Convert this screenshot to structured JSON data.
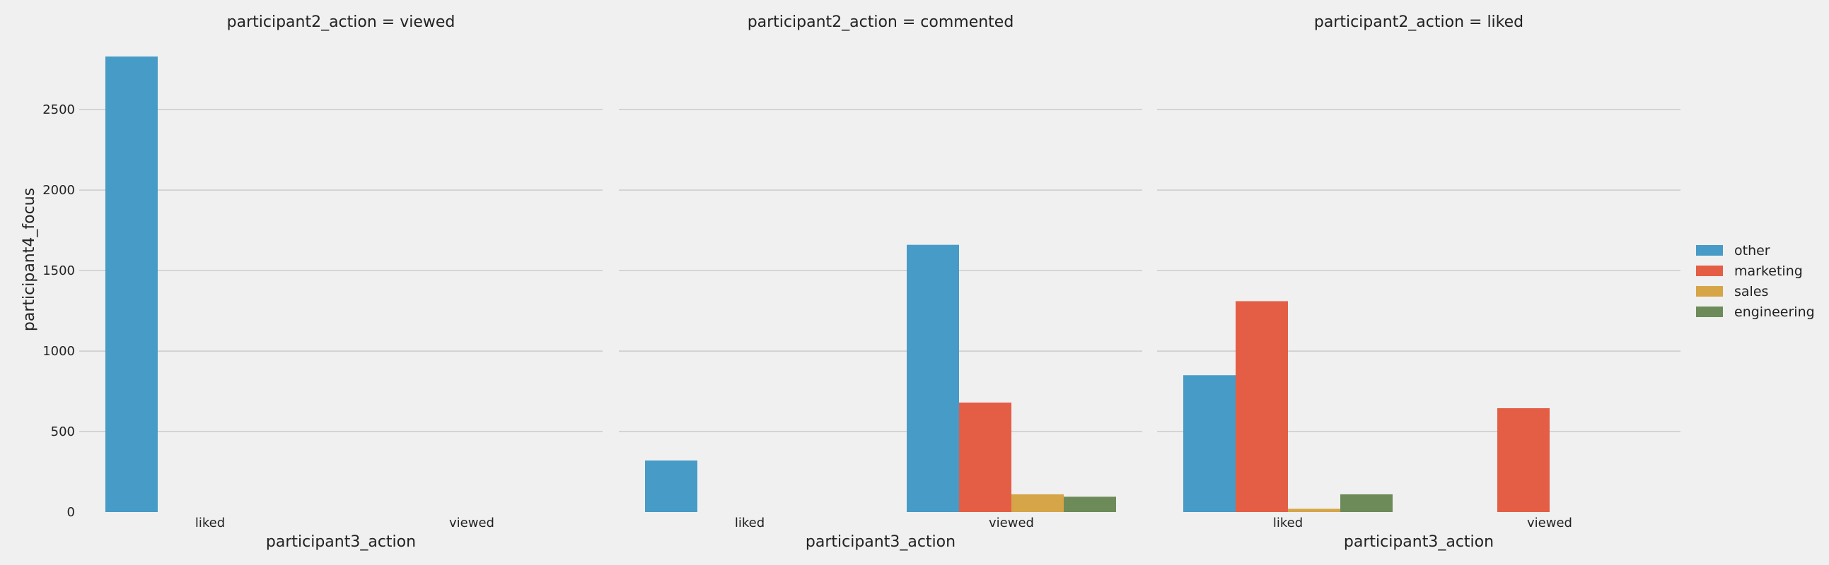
{
  "chart_data": {
    "type": "bar",
    "ylabel": "participant4_focus",
    "ylim": [
      0,
      2900
    ],
    "yticks": [
      0,
      500,
      1000,
      1500,
      2000,
      2500
    ],
    "grid": "y-only",
    "legend_position": "right",
    "colors": {
      "other": "#479bc7",
      "marketing": "#e45e45",
      "sales": "#d6a548",
      "engineering": "#6d8b58"
    },
    "hue_order": [
      "other",
      "marketing",
      "sales",
      "engineering"
    ],
    "categories": [
      "liked",
      "viewed"
    ],
    "facets": [
      {
        "title": "participant2_action = viewed",
        "xlabel": "participant3_action",
        "series": [
          {
            "name": "other",
            "values": [
              2830,
              null
            ]
          },
          {
            "name": "marketing",
            "values": [
              null,
              null
            ]
          },
          {
            "name": "sales",
            "values": [
              null,
              null
            ]
          },
          {
            "name": "engineering",
            "values": [
              null,
              null
            ]
          }
        ]
      },
      {
        "title": "participant2_action = commented",
        "xlabel": "participant3_action",
        "series": [
          {
            "name": "other",
            "values": [
              320,
              1660
            ]
          },
          {
            "name": "marketing",
            "values": [
              null,
              680
            ]
          },
          {
            "name": "sales",
            "values": [
              null,
              110
            ]
          },
          {
            "name": "engineering",
            "values": [
              null,
              95
            ]
          }
        ]
      },
      {
        "title": "participant2_action = liked",
        "xlabel": "participant3_action",
        "series": [
          {
            "name": "other",
            "values": [
              850,
              null
            ]
          },
          {
            "name": "marketing",
            "values": [
              1310,
              645
            ]
          },
          {
            "name": "sales",
            "values": [
              20,
              null
            ]
          },
          {
            "name": "engineering",
            "values": [
              110,
              null
            ]
          }
        ]
      }
    ]
  }
}
